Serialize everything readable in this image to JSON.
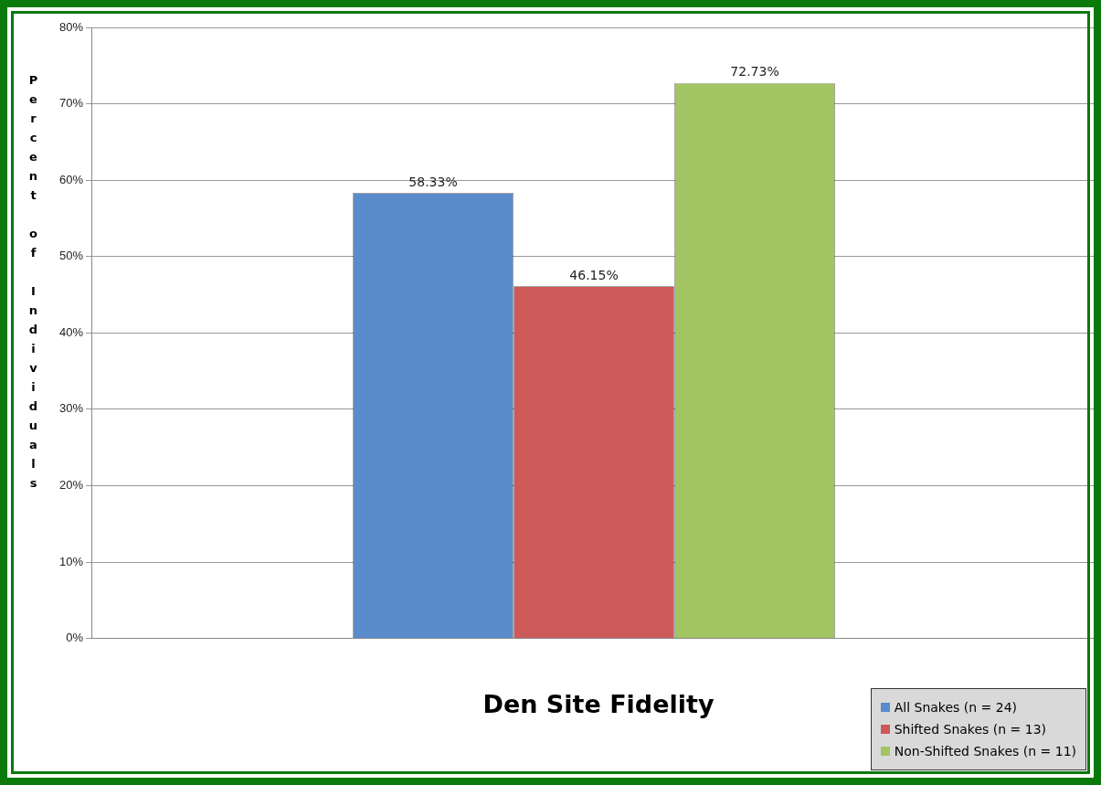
{
  "chart_data": {
    "type": "bar",
    "title": "Den Site Fidelity",
    "ylabel": "Percent of Individuals",
    "categories": [
      null
    ],
    "series": [
      {
        "name": "All Snakes (n = 24)",
        "color": "#5a8bca",
        "values": [
          58.33
        ],
        "value_labels": [
          "58.33%"
        ]
      },
      {
        "name": "Shifted Snakes (n = 13)",
        "color": "#cd5a58",
        "values": [
          46.15
        ],
        "value_labels": [
          "46.15%"
        ]
      },
      {
        "name": "Non-Shifted Snakes (n = 11)",
        "color": "#a3c462",
        "values": [
          72.73
        ],
        "value_labels": [
          "72.73%"
        ]
      }
    ],
    "ylim": [
      0,
      80
    ],
    "yticks": [
      {
        "value": 0,
        "label": "0%"
      },
      {
        "value": 10,
        "label": "10%"
      },
      {
        "value": 20,
        "label": "20%"
      },
      {
        "value": 30,
        "label": "30%"
      },
      {
        "value": 40,
        "label": "40%"
      },
      {
        "value": 50,
        "label": "50%"
      },
      {
        "value": 60,
        "label": "60%"
      },
      {
        "value": 70,
        "label": "70%"
      },
      {
        "value": 80,
        "label": "80%"
      }
    ],
    "grid": "y",
    "legend": "bottom right"
  }
}
